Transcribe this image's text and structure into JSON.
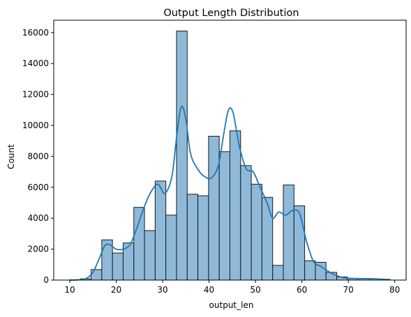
{
  "chart_data": {
    "type": "bar",
    "subtype": "histogram with kde",
    "title": "Output Length Distribution",
    "xlabel": "output_len",
    "ylabel": "Count",
    "xlim": [
      6.55,
      82.45
    ],
    "ylim": [
      0,
      16800
    ],
    "xticks": [
      10,
      20,
      30,
      40,
      50,
      60,
      70,
      80
    ],
    "yticks": [
      0,
      2000,
      4000,
      6000,
      8000,
      10000,
      12000,
      14000,
      16000
    ],
    "grid": false,
    "legend": "none",
    "colors": {
      "bar_fill": "#8fb9d9",
      "bar_edge": "#1a1a1a",
      "kde_line": "#1f77b4",
      "axis": "#000000"
    },
    "bins": [
      {
        "x0": 10.0,
        "x1": 12.3,
        "count": 20
      },
      {
        "x0": 12.3,
        "x1": 14.6,
        "count": 80
      },
      {
        "x0": 14.6,
        "x1": 16.9,
        "count": 680
      },
      {
        "x0": 16.9,
        "x1": 19.2,
        "count": 2600
      },
      {
        "x0": 19.2,
        "x1": 21.5,
        "count": 1750
      },
      {
        "x0": 21.5,
        "x1": 23.8,
        "count": 2400
      },
      {
        "x0": 23.8,
        "x1": 26.1,
        "count": 4700
      },
      {
        "x0": 26.1,
        "x1": 28.4,
        "count": 3200
      },
      {
        "x0": 28.4,
        "x1": 30.7,
        "count": 6400
      },
      {
        "x0": 30.7,
        "x1": 33.0,
        "count": 4200
      },
      {
        "x0": 33.0,
        "x1": 35.3,
        "count": 16100
      },
      {
        "x0": 35.3,
        "x1": 37.6,
        "count": 5550
      },
      {
        "x0": 37.6,
        "x1": 39.9,
        "count": 5450
      },
      {
        "x0": 39.9,
        "x1": 42.2,
        "count": 9300
      },
      {
        "x0": 42.2,
        "x1": 44.5,
        "count": 8300
      },
      {
        "x0": 44.5,
        "x1": 46.8,
        "count": 9650
      },
      {
        "x0": 46.8,
        "x1": 49.1,
        "count": 7400
      },
      {
        "x0": 49.1,
        "x1": 51.4,
        "count": 6200
      },
      {
        "x0": 51.4,
        "x1": 53.7,
        "count": 5350
      },
      {
        "x0": 53.7,
        "x1": 56.0,
        "count": 950
      },
      {
        "x0": 56.0,
        "x1": 58.3,
        "count": 6150
      },
      {
        "x0": 58.3,
        "x1": 60.6,
        "count": 4800
      },
      {
        "x0": 60.6,
        "x1": 62.9,
        "count": 1250
      },
      {
        "x0": 62.9,
        "x1": 65.2,
        "count": 1150
      },
      {
        "x0": 65.2,
        "x1": 67.5,
        "count": 500
      },
      {
        "x0": 67.5,
        "x1": 69.8,
        "count": 200
      },
      {
        "x0": 69.8,
        "x1": 72.1,
        "count": 100
      },
      {
        "x0": 72.1,
        "x1": 74.4,
        "count": 100
      },
      {
        "x0": 74.4,
        "x1": 76.7,
        "count": 80
      },
      {
        "x0": 76.7,
        "x1": 79.0,
        "count": 50
      }
    ],
    "kde": [
      [
        10,
        0
      ],
      [
        12,
        20
      ],
      [
        13.5,
        100
      ],
      [
        15,
        500
      ],
      [
        16.5,
        1500
      ],
      [
        17.5,
        2200
      ],
      [
        18.5,
        2300
      ],
      [
        20,
        2000
      ],
      [
        21.5,
        2000
      ],
      [
        23,
        2300
      ],
      [
        24.5,
        3400
      ],
      [
        26,
        4700
      ],
      [
        27.5,
        5700
      ],
      [
        29,
        6200
      ],
      [
        30.5,
        5600
      ],
      [
        32,
        6700
      ],
      [
        33,
        9200
      ],
      [
        34,
        11200
      ],
      [
        35,
        10400
      ],
      [
        36,
        8200
      ],
      [
        37.5,
        7200
      ],
      [
        39,
        6700
      ],
      [
        40.5,
        6600
      ],
      [
        42,
        7400
      ],
      [
        43.2,
        9500
      ],
      [
        44.2,
        11000
      ],
      [
        45.2,
        10800
      ],
      [
        46.5,
        8700
      ],
      [
        48,
        7200
      ],
      [
        49.5,
        7000
      ],
      [
        51,
        6000
      ],
      [
        52.5,
        5000
      ],
      [
        53.7,
        4000
      ],
      [
        55,
        4400
      ],
      [
        56.5,
        4200
      ],
      [
        58,
        4500
      ],
      [
        59.5,
        4300
      ],
      [
        61,
        2500
      ],
      [
        62.5,
        1200
      ],
      [
        64,
        900
      ],
      [
        65.5,
        600
      ],
      [
        67,
        350
      ],
      [
        69,
        150
      ],
      [
        72,
        100
      ],
      [
        75,
        90
      ],
      [
        77,
        60
      ],
      [
        79,
        30
      ]
    ]
  }
}
